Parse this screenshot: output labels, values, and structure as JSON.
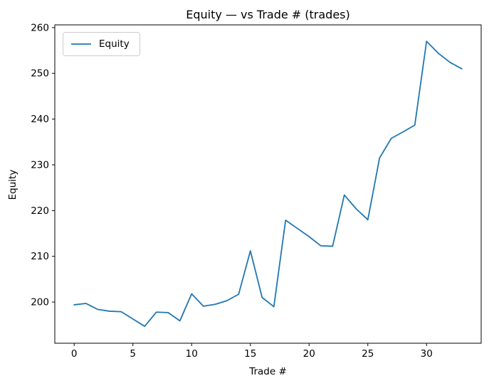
{
  "figure": {
    "background_color": "#ffffff",
    "text_color": "#000000",
    "spine_color": "#000000"
  },
  "chart_data": {
    "type": "line",
    "title": "Equity — vs Trade # (trades)",
    "xlabel": "Trade #",
    "ylabel": "Equity",
    "grid": false,
    "legend": {
      "position": "upper left",
      "entries": [
        "Equity"
      ]
    },
    "x": [
      0,
      1,
      2,
      3,
      4,
      5,
      6,
      7,
      8,
      9,
      10,
      11,
      12,
      13,
      14,
      15,
      16,
      17,
      18,
      19,
      20,
      21,
      22,
      23,
      24,
      25,
      26,
      27,
      28,
      29,
      30,
      31,
      32,
      33
    ],
    "series": [
      {
        "name": "Equity",
        "color": "#1f77b4",
        "values": [
          199.4,
          199.7,
          198.4,
          198.0,
          197.9,
          196.3,
          194.7,
          197.8,
          197.7,
          195.9,
          201.8,
          199.1,
          199.5,
          200.3,
          201.7,
          211.2,
          201.0,
          199.0,
          217.9,
          216.1,
          214.3,
          212.3,
          212.2,
          223.4,
          220.4,
          218.0,
          231.5,
          235.8,
          237.2,
          238.7,
          257.0,
          254.4,
          252.4,
          251.0
        ]
      }
    ],
    "xlim": [
      -1.65,
      34.65
    ],
    "ylim": [
      191.0,
      260.6
    ],
    "xticks": [
      0,
      5,
      10,
      15,
      20,
      25,
      30
    ],
    "yticks": [
      200,
      210,
      220,
      230,
      240,
      250,
      260
    ]
  }
}
